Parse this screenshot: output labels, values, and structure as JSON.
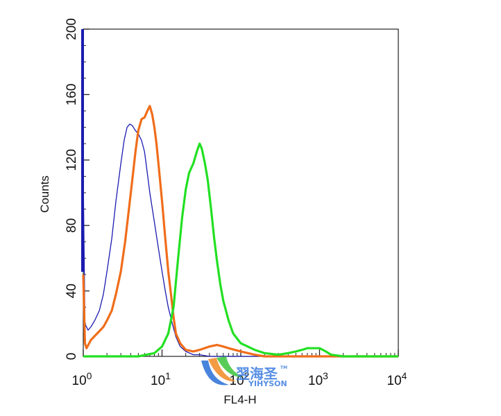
{
  "chart_data": {
    "type": "line",
    "title": "",
    "xlabel": "FL4-H",
    "ylabel": "Counts",
    "x_scale": "log",
    "xlim": [
      1,
      10000
    ],
    "ylim": [
      0,
      200
    ],
    "x_ticks": [
      {
        "value": 1,
        "base": "10",
        "exp": "0"
      },
      {
        "value": 10,
        "base": "10",
        "exp": "1"
      },
      {
        "value": 100,
        "base": "10",
        "exp": "2"
      },
      {
        "value": 1000,
        "base": "10",
        "exp": "3"
      },
      {
        "value": 10000,
        "base": "10",
        "exp": "4"
      }
    ],
    "y_ticks": [
      {
        "value": 0,
        "label": "0"
      },
      {
        "value": 40,
        "label": "40"
      },
      {
        "value": 80,
        "label": "80"
      },
      {
        "value": 120,
        "label": "120"
      },
      {
        "value": 160,
        "label": "160"
      },
      {
        "value": 200,
        "label": "200"
      }
    ],
    "grid": false,
    "series": [
      {
        "color": "#1a1ab0",
        "x": [
          1,
          1.05,
          1.15,
          1.25,
          1.4,
          1.6,
          1.8,
          2.0,
          2.3,
          2.6,
          3.0,
          3.3,
          3.6,
          3.9,
          4.2,
          4.6,
          5.0,
          5.5,
          6.0,
          6.5,
          7.0,
          8.0,
          9.0,
          10.0,
          11.0,
          12.0,
          13.5,
          15,
          17,
          20,
          25,
          30,
          40,
          60,
          100,
          200,
          1000
        ],
        "y": [
          110,
          20,
          16,
          18,
          22,
          28,
          38,
          52,
          72,
          95,
          118,
          132,
          140,
          142,
          141,
          138,
          136,
          132,
          125,
          112,
          100,
          82,
          66,
          52,
          40,
          30,
          20,
          12,
          6,
          3,
          1,
          1,
          0,
          0,
          0,
          0,
          0
        ]
      },
      {
        "color": "#f06d1a",
        "x": [
          1,
          1.05,
          1.1,
          1.25,
          1.5,
          1.8,
          2.0,
          2.3,
          2.6,
          3.0,
          3.4,
          3.8,
          4.2,
          4.6,
          5.0,
          5.5,
          6.0,
          6.5,
          7.0,
          7.5,
          8.0,
          8.5,
          9.0,
          10.0,
          11.0,
          12.0,
          13,
          14,
          15,
          17,
          20,
          25,
          30,
          40,
          50,
          60,
          70,
          100,
          150,
          200,
          10000
        ],
        "y": [
          50,
          8,
          5,
          10,
          14,
          18,
          22,
          28,
          38,
          52,
          70,
          90,
          108,
          125,
          138,
          145,
          146,
          150,
          153,
          148,
          140,
          130,
          118,
          95,
          72,
          52,
          38,
          24,
          14,
          8,
          4,
          3,
          4,
          6,
          7,
          6,
          5,
          3,
          1,
          0,
          0
        ]
      },
      {
        "color": "#22e022",
        "x": [
          1,
          5,
          8,
          10,
          12,
          14,
          16,
          18,
          20,
          22,
          25,
          28,
          30,
          32,
          35,
          38,
          42,
          46,
          50,
          55,
          60,
          70,
          80,
          100,
          150,
          200,
          300,
          400,
          500,
          600,
          700,
          800,
          900,
          1000,
          1100,
          1200,
          1400,
          2000,
          5000,
          10000
        ],
        "y": [
          0,
          0,
          2,
          6,
          14,
          30,
          60,
          85,
          102,
          112,
          118,
          126,
          130,
          127,
          118,
          108,
          90,
          72,
          58,
          44,
          34,
          22,
          14,
          8,
          4,
          2,
          1,
          2,
          3,
          4,
          5,
          5,
          5,
          5,
          4,
          3,
          1,
          0,
          0,
          0
        ]
      }
    ]
  },
  "watermark": {
    "brand_cn": "翌海圣",
    "brand_en": "YIHYSON",
    "tm": "TM"
  }
}
